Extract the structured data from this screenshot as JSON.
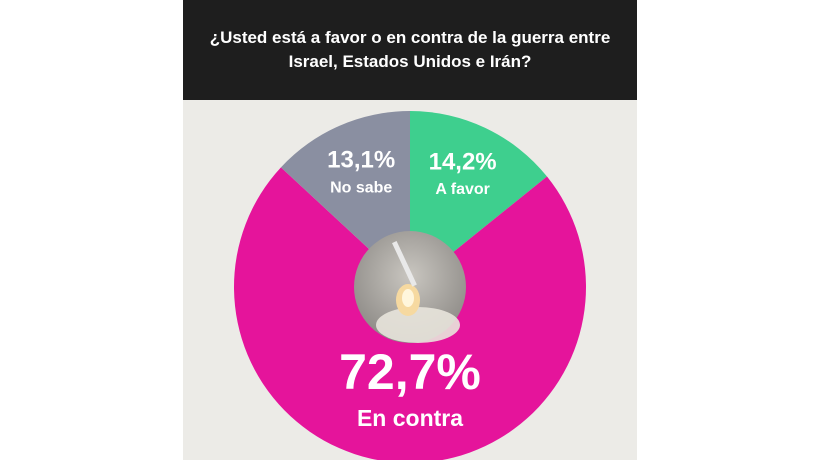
{
  "chart_data": {
    "type": "pie",
    "title": "¿Usted está a favor o en contra de la guerra entre Israel, Estados Unidos e Irán?",
    "categories": [
      "A favor",
      "En contra",
      "No sabe"
    ],
    "values": [
      14.2,
      72.7,
      13.1
    ],
    "value_labels": [
      "14,2%",
      "72,7%",
      "13,1%"
    ],
    "colors": [
      "#3ecf8e",
      "#e5149b",
      "#8a8fa1"
    ]
  }
}
